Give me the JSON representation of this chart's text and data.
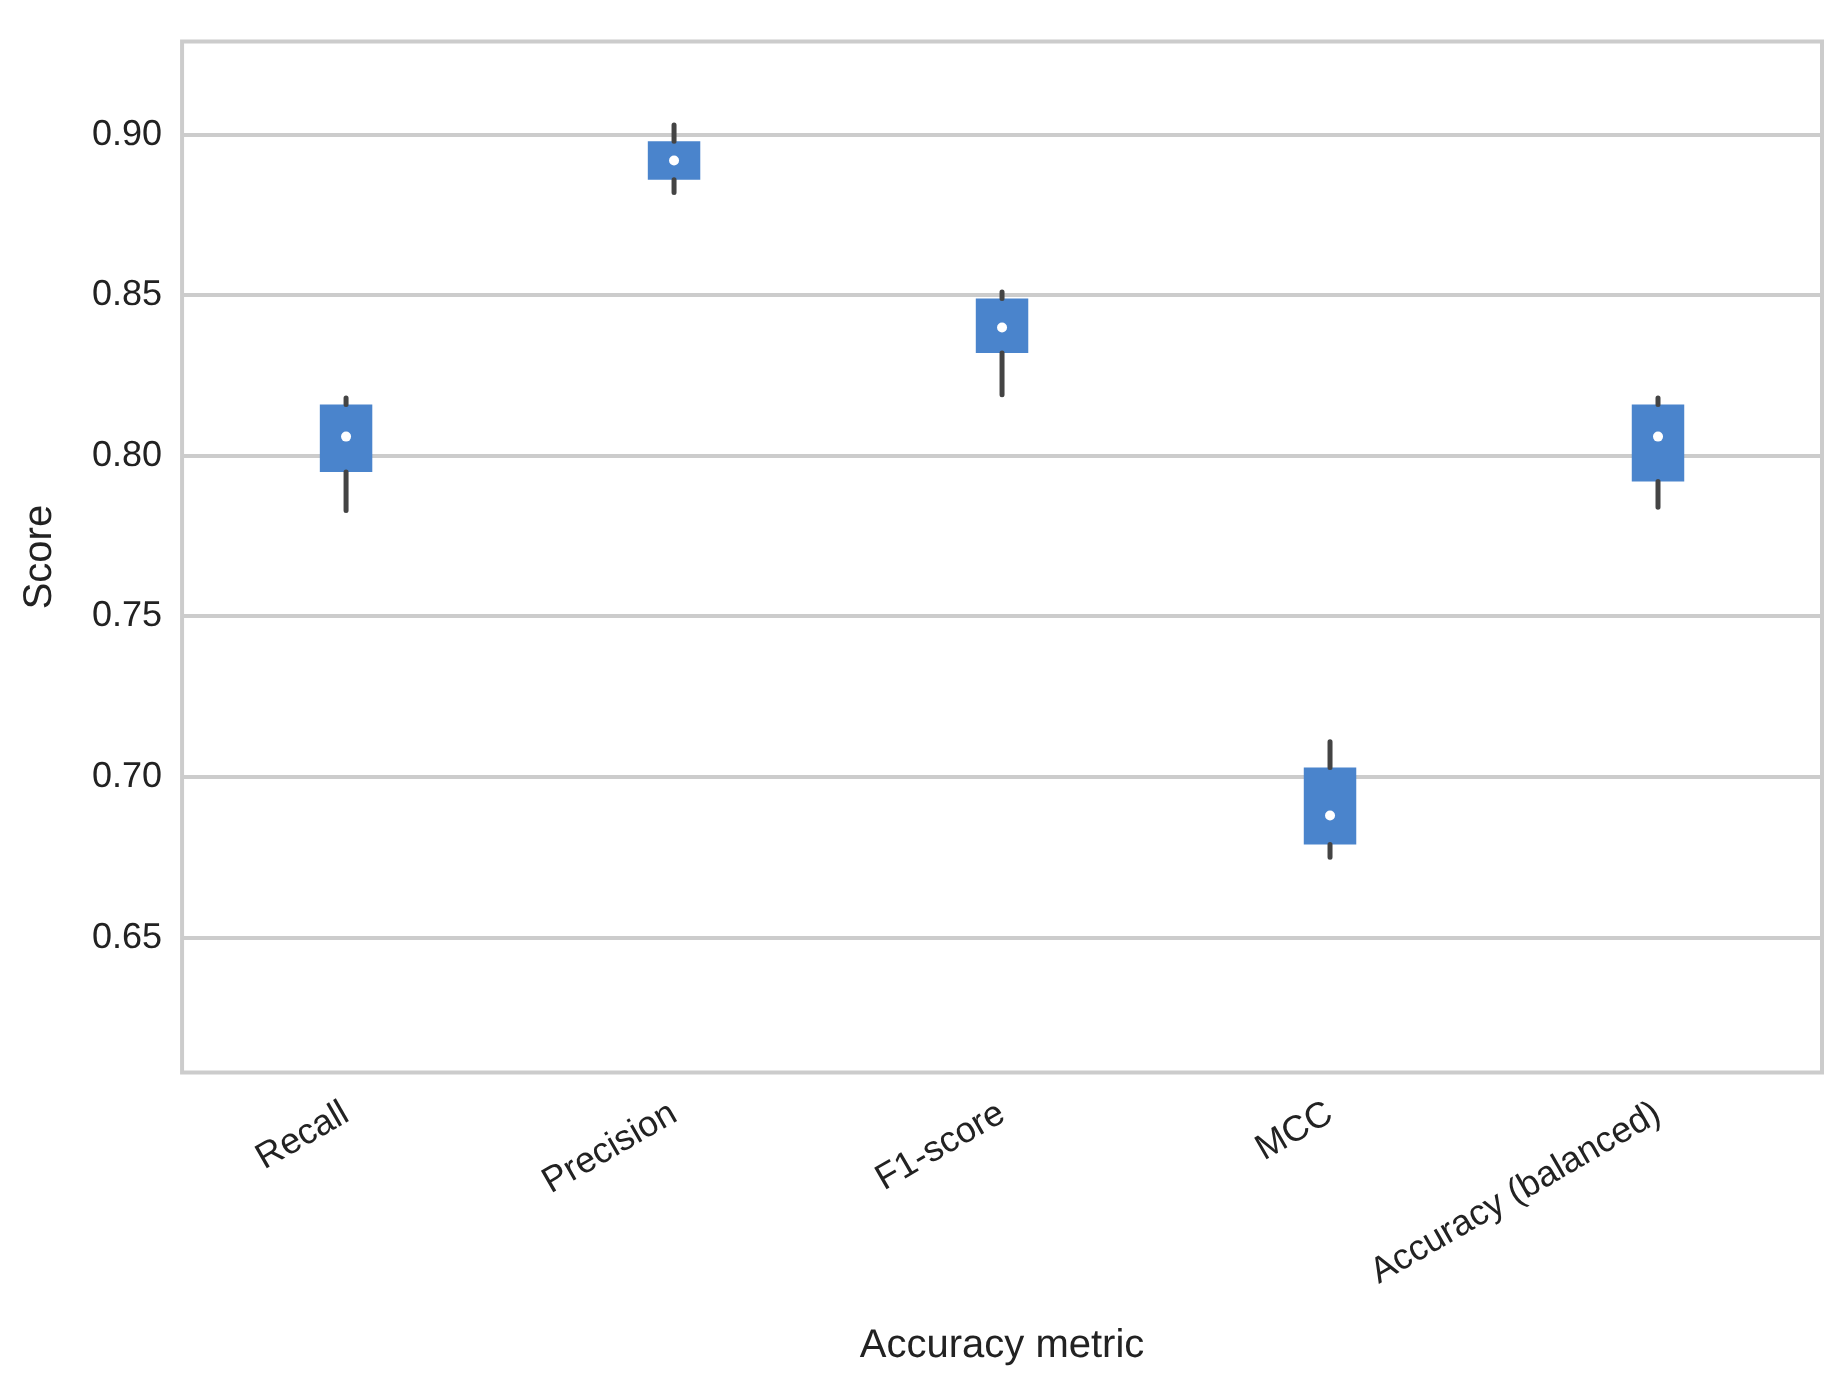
{
  "chart_data": {
    "type": "box",
    "xlabel": "Accuracy metric",
    "ylabel": "Score",
    "categories": [
      "Recall",
      "Precision",
      "F1-score",
      "MCC",
      "Accuracy (balanced)"
    ],
    "color": "#4a84cc",
    "boxes": [
      {
        "low": 0.783,
        "q1": 0.795,
        "median": 0.806,
        "q3": 0.816,
        "high": 0.818
      },
      {
        "low": 0.882,
        "q1": 0.886,
        "median": 0.892,
        "q3": 0.898,
        "high": 0.903
      },
      {
        "low": 0.819,
        "q1": 0.832,
        "median": 0.84,
        "q3": 0.849,
        "high": 0.851
      },
      {
        "low": 0.675,
        "q1": 0.679,
        "median": 0.688,
        "q3": 0.703,
        "high": 0.711
      },
      {
        "low": 0.784,
        "q1": 0.792,
        "median": 0.806,
        "q3": 0.816,
        "high": 0.818
      }
    ],
    "ylim": [
      0.608,
      0.929
    ],
    "yticks": [
      {
        "value": 0.65,
        "label": "0.65"
      },
      {
        "value": 0.7,
        "label": "0.70"
      },
      {
        "value": 0.75,
        "label": "0.75"
      },
      {
        "value": 0.8,
        "label": "0.80"
      },
      {
        "value": 0.85,
        "label": "0.85"
      },
      {
        "value": 0.9,
        "label": "0.90"
      }
    ],
    "grid": "y"
  }
}
